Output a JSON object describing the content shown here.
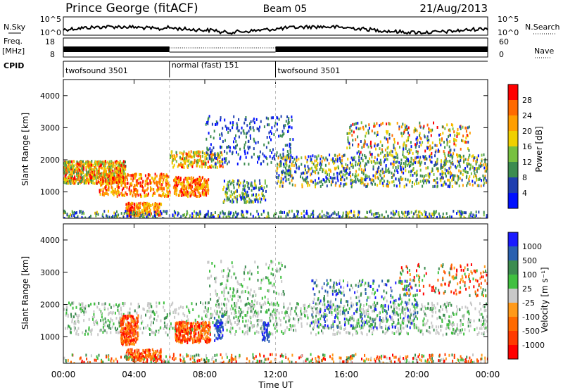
{
  "header": {
    "title": "Prince George (fitACF)",
    "beam": "Beam 05",
    "date": "21/Aug/2013"
  },
  "strips": {
    "nsky_label": "N.Sky",
    "nsky_ticks": [
      "10^5",
      "10^0"
    ],
    "nsearch_label": "N.Search",
    "nsearch_ticks": [
      "10^5",
      "10^0"
    ],
    "freq_label": [
      "Freq.",
      "[MHz]"
    ],
    "freq_ticks": [
      "18",
      "8"
    ],
    "nave_label": "Nave",
    "nave_ticks": [
      "60",
      "0"
    ],
    "cpid_label": "CPID",
    "cpid_segments": [
      {
        "label": "twofsound 3501",
        "start_hour": 0,
        "end_hour": 6
      },
      {
        "label": "normal (fast) 151",
        "start_hour": 6,
        "end_hour": 12
      },
      {
        "label": "twofsound 3501",
        "start_hour": 12,
        "end_hour": 24
      }
    ]
  },
  "chart_data": [
    {
      "type": "heatmap",
      "name": "power",
      "ylabel": "Slant Range [km]",
      "ylim": [
        180,
        4500
      ],
      "yticks": [
        1000,
        2000,
        3000,
        4000
      ],
      "xlim": [
        0,
        24
      ],
      "colorbar": {
        "label": "Power [dB]",
        "ticks": [
          "28",
          "24",
          "20",
          "16",
          "12",
          "8",
          "4"
        ],
        "colors": [
          "#ff0000",
          "#ff6a00",
          "#ff9e00",
          "#f0d000",
          "#78c040",
          "#3c8c50",
          "#1f3fb0",
          "#0010ff"
        ]
      }
    },
    {
      "type": "heatmap",
      "name": "velocity",
      "ylabel": "Slant Range [km]",
      "ylim": [
        180,
        4500
      ],
      "yticks": [
        1000,
        2000,
        3000,
        4000
      ],
      "xlim": [
        0,
        24
      ],
      "xlabel": "Time UT",
      "xticks": [
        "00:00",
        "04:00",
        "08:00",
        "12:00",
        "16:00",
        "20:00",
        "00:00"
      ],
      "colorbar": {
        "label": "Velocity [m s⁻¹]",
        "ticks": [
          "1000",
          "500",
          "100",
          "25",
          "-25",
          "-100",
          "-500",
          "-1000"
        ],
        "colors": [
          "#1a1aff",
          "#2a60b0",
          "#3c8c50",
          "#40c040",
          "#c8c8c8",
          "#ff9a1a",
          "#ff6a00",
          "#ff3a00",
          "#ff0000"
        ]
      }
    }
  ]
}
